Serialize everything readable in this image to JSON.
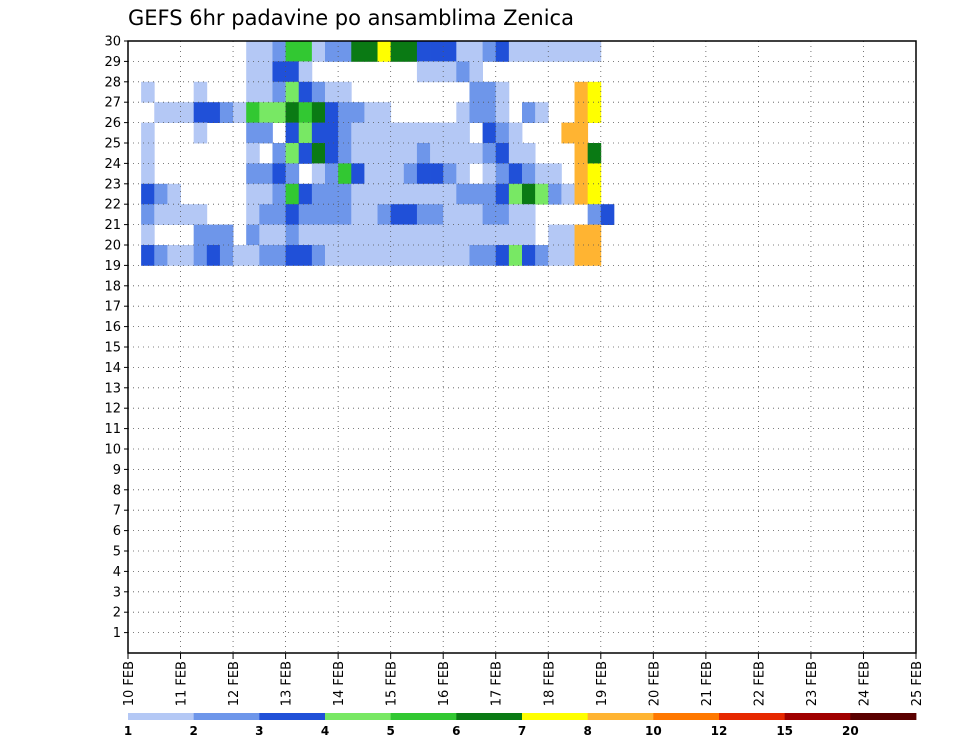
{
  "chart_data": {
    "type": "heatmap",
    "title": "GEFS 6hr padavine po ansamblima Zenica",
    "xlabel": "",
    "ylabel": "",
    "x_ticks": [
      "10 FEB",
      "11 FEB",
      "12 FEB",
      "13 FEB",
      "14 FEB",
      "15 FEB",
      "16 FEB",
      "17 FEB",
      "18 FEB",
      "19 FEB",
      "20 FEB",
      "21 FEB",
      "22 FEB",
      "23 FEB",
      "24 FEB",
      "25 FEB"
    ],
    "y_ticks": [
      "1",
      "2",
      "3",
      "4",
      "5",
      "6",
      "7",
      "8",
      "9",
      "10",
      "11",
      "12",
      "13",
      "14",
      "15",
      "16",
      "17",
      "18",
      "19",
      "20",
      "21",
      "22",
      "23",
      "24",
      "25",
      "26",
      "27",
      "28",
      "29",
      "30"
    ],
    "ensemble_members": 30,
    "time_steps_6h": 60,
    "grid": true,
    "legend_position": "bottom",
    "color_scale": {
      "levels": [
        "1",
        "2",
        "3",
        "4",
        "5",
        "6",
        "7",
        "8",
        "10",
        "12",
        "15",
        "20"
      ],
      "colors": [
        "#b4c8f5",
        "#6e96ea",
        "#2050d8",
        "#78e864",
        "#32c832",
        "#0a7a14",
        "#ffff00",
        "#ffb432",
        "#ff7800",
        "#e62800",
        "#a00000",
        "#5a0000"
      ]
    },
    "cells": [
      [
        30,
        9,
        1
      ],
      [
        30,
        10,
        1
      ],
      [
        30,
        11,
        2
      ],
      [
        30,
        12,
        5
      ],
      [
        30,
        13,
        5
      ],
      [
        30,
        14,
        1
      ],
      [
        30,
        15,
        2
      ],
      [
        30,
        16,
        2
      ],
      [
        30,
        17,
        6
      ],
      [
        30,
        18,
        6
      ],
      [
        30,
        19,
        7
      ],
      [
        30,
        20,
        6
      ],
      [
        30,
        21,
        6
      ],
      [
        30,
        22,
        3
      ],
      [
        30,
        23,
        3
      ],
      [
        30,
        24,
        3
      ],
      [
        30,
        25,
        1
      ],
      [
        30,
        26,
        1
      ],
      [
        30,
        27,
        2
      ],
      [
        30,
        28,
        3
      ],
      [
        30,
        29,
        1
      ],
      [
        30,
        30,
        1
      ],
      [
        30,
        31,
        1
      ],
      [
        30,
        32,
        1
      ],
      [
        30,
        33,
        1
      ],
      [
        30,
        34,
        1
      ],
      [
        30,
        35,
        1
      ],
      [
        29,
        9,
        1
      ],
      [
        29,
        10,
        1
      ],
      [
        29,
        11,
        3
      ],
      [
        29,
        12,
        3
      ],
      [
        29,
        13,
        1
      ],
      [
        29,
        22,
        1
      ],
      [
        29,
        23,
        1
      ],
      [
        29,
        24,
        1
      ],
      [
        29,
        25,
        2
      ],
      [
        29,
        26,
        1
      ],
      [
        28,
        1,
        1
      ],
      [
        28,
        5,
        1
      ],
      [
        28,
        9,
        1
      ],
      [
        28,
        10,
        1
      ],
      [
        28,
        11,
        2
      ],
      [
        28,
        12,
        4
      ],
      [
        28,
        13,
        3
      ],
      [
        28,
        14,
        2
      ],
      [
        28,
        15,
        1
      ],
      [
        28,
        16,
        1
      ],
      [
        28,
        26,
        2
      ],
      [
        28,
        27,
        2
      ],
      [
        28,
        28,
        1
      ],
      [
        28,
        34,
        8
      ],
      [
        28,
        35,
        7
      ],
      [
        27,
        2,
        1
      ],
      [
        27,
        3,
        1
      ],
      [
        27,
        4,
        1
      ],
      [
        27,
        5,
        3
      ],
      [
        27,
        6,
        3
      ],
      [
        27,
        7,
        2
      ],
      [
        27,
        8,
        1
      ],
      [
        27,
        9,
        5
      ],
      [
        27,
        10,
        4
      ],
      [
        27,
        11,
        4
      ],
      [
        27,
        12,
        6
      ],
      [
        27,
        13,
        5
      ],
      [
        27,
        14,
        6
      ],
      [
        27,
        15,
        3
      ],
      [
        27,
        16,
        2
      ],
      [
        27,
        17,
        2
      ],
      [
        27,
        18,
        1
      ],
      [
        27,
        19,
        1
      ],
      [
        27,
        25,
        1
      ],
      [
        27,
        26,
        2
      ],
      [
        27,
        27,
        2
      ],
      [
        27,
        28,
        1
      ],
      [
        27,
        30,
        2
      ],
      [
        27,
        31,
        1
      ],
      [
        27,
        34,
        8
      ],
      [
        27,
        35,
        7
      ],
      [
        26,
        1,
        1
      ],
      [
        26,
        5,
        1
      ],
      [
        26,
        9,
        2
      ],
      [
        26,
        10,
        2
      ],
      [
        26,
        12,
        3
      ],
      [
        26,
        13,
        4
      ],
      [
        26,
        14,
        3
      ],
      [
        26,
        15,
        3
      ],
      [
        26,
        16,
        2
      ],
      [
        26,
        17,
        1
      ],
      [
        26,
        18,
        1
      ],
      [
        26,
        19,
        1
      ],
      [
        26,
        20,
        1
      ],
      [
        26,
        21,
        1
      ],
      [
        26,
        22,
        1
      ],
      [
        26,
        23,
        1
      ],
      [
        26,
        24,
        1
      ],
      [
        26,
        25,
        1
      ],
      [
        26,
        27,
        3
      ],
      [
        26,
        28,
        2
      ],
      [
        26,
        29,
        1
      ],
      [
        26,
        33,
        8
      ],
      [
        26,
        34,
        8
      ],
      [
        25,
        1,
        1
      ],
      [
        25,
        9,
        1
      ],
      [
        25,
        11,
        2
      ],
      [
        25,
        12,
        4
      ],
      [
        25,
        13,
        3
      ],
      [
        25,
        14,
        6
      ],
      [
        25,
        15,
        3
      ],
      [
        25,
        16,
        2
      ],
      [
        25,
        17,
        1
      ],
      [
        25,
        18,
        1
      ],
      [
        25,
        19,
        1
      ],
      [
        25,
        20,
        1
      ],
      [
        25,
        21,
        1
      ],
      [
        25,
        22,
        2
      ],
      [
        25,
        23,
        1
      ],
      [
        25,
        24,
        1
      ],
      [
        25,
        25,
        1
      ],
      [
        25,
        26,
        1
      ],
      [
        25,
        27,
        2
      ],
      [
        25,
        28,
        3
      ],
      [
        25,
        29,
        1
      ],
      [
        25,
        30,
        1
      ],
      [
        25,
        34,
        8
      ],
      [
        25,
        35,
        6
      ],
      [
        24,
        1,
        1
      ],
      [
        24,
        9,
        2
      ],
      [
        24,
        10,
        2
      ],
      [
        24,
        11,
        3
      ],
      [
        24,
        12,
        2
      ],
      [
        24,
        14,
        1
      ],
      [
        24,
        15,
        2
      ],
      [
        24,
        16,
        5
      ],
      [
        24,
        17,
        3
      ],
      [
        24,
        18,
        1
      ],
      [
        24,
        19,
        1
      ],
      [
        24,
        20,
        1
      ],
      [
        24,
        21,
        2
      ],
      [
        24,
        22,
        3
      ],
      [
        24,
        23,
        3
      ],
      [
        24,
        24,
        2
      ],
      [
        24,
        25,
        1
      ],
      [
        24,
        27,
        1
      ],
      [
        24,
        28,
        2
      ],
      [
        24,
        29,
        3
      ],
      [
        24,
        30,
        2
      ],
      [
        24,
        31,
        1
      ],
      [
        24,
        32,
        1
      ],
      [
        24,
        34,
        8
      ],
      [
        24,
        35,
        7
      ],
      [
        23,
        1,
        3
      ],
      [
        23,
        2,
        2
      ],
      [
        23,
        3,
        1
      ],
      [
        23,
        9,
        1
      ],
      [
        23,
        10,
        1
      ],
      [
        23,
        11,
        2
      ],
      [
        23,
        12,
        5
      ],
      [
        23,
        13,
        3
      ],
      [
        23,
        14,
        2
      ],
      [
        23,
        15,
        2
      ],
      [
        23,
        16,
        2
      ],
      [
        23,
        17,
        1
      ],
      [
        23,
        18,
        1
      ],
      [
        23,
        19,
        1
      ],
      [
        23,
        20,
        1
      ],
      [
        23,
        21,
        1
      ],
      [
        23,
        22,
        1
      ],
      [
        23,
        23,
        1
      ],
      [
        23,
        24,
        1
      ],
      [
        23,
        25,
        2
      ],
      [
        23,
        26,
        2
      ],
      [
        23,
        27,
        2
      ],
      [
        23,
        28,
        3
      ],
      [
        23,
        29,
        4
      ],
      [
        23,
        30,
        6
      ],
      [
        23,
        31,
        4
      ],
      [
        23,
        32,
        2
      ],
      [
        23,
        33,
        1
      ],
      [
        23,
        34,
        8
      ],
      [
        23,
        35,
        7
      ],
      [
        22,
        1,
        2
      ],
      [
        22,
        2,
        1
      ],
      [
        22,
        3,
        1
      ],
      [
        22,
        4,
        1
      ],
      [
        22,
        5,
        1
      ],
      [
        22,
        9,
        1
      ],
      [
        22,
        10,
        2
      ],
      [
        22,
        11,
        2
      ],
      [
        22,
        12,
        3
      ],
      [
        22,
        13,
        2
      ],
      [
        22,
        14,
        2
      ],
      [
        22,
        15,
        2
      ],
      [
        22,
        16,
        2
      ],
      [
        22,
        17,
        1
      ],
      [
        22,
        18,
        1
      ],
      [
        22,
        19,
        2
      ],
      [
        22,
        20,
        3
      ],
      [
        22,
        21,
        3
      ],
      [
        22,
        22,
        2
      ],
      [
        22,
        23,
        2
      ],
      [
        22,
        24,
        1
      ],
      [
        22,
        25,
        1
      ],
      [
        22,
        26,
        1
      ],
      [
        22,
        27,
        2
      ],
      [
        22,
        28,
        2
      ],
      [
        22,
        29,
        1
      ],
      [
        22,
        30,
        1
      ],
      [
        22,
        35,
        2
      ],
      [
        22,
        36,
        3
      ],
      [
        21,
        1,
        1
      ],
      [
        21,
        5,
        2
      ],
      [
        21,
        6,
        2
      ],
      [
        21,
        7,
        2
      ],
      [
        21,
        9,
        2
      ],
      [
        21,
        10,
        1
      ],
      [
        21,
        11,
        1
      ],
      [
        21,
        12,
        2
      ],
      [
        21,
        13,
        1
      ],
      [
        21,
        14,
        1
      ],
      [
        21,
        15,
        1
      ],
      [
        21,
        16,
        1
      ],
      [
        21,
        17,
        1
      ],
      [
        21,
        18,
        1
      ],
      [
        21,
        19,
        1
      ],
      [
        21,
        20,
        1
      ],
      [
        21,
        21,
        1
      ],
      [
        21,
        22,
        1
      ],
      [
        21,
        23,
        1
      ],
      [
        21,
        24,
        1
      ],
      [
        21,
        25,
        1
      ],
      [
        21,
        26,
        1
      ],
      [
        21,
        27,
        1
      ],
      [
        21,
        28,
        1
      ],
      [
        21,
        29,
        1
      ],
      [
        21,
        30,
        1
      ],
      [
        21,
        32,
        1
      ],
      [
        21,
        33,
        1
      ],
      [
        21,
        34,
        8
      ],
      [
        21,
        35,
        8
      ],
      [
        20,
        1,
        3
      ],
      [
        20,
        2,
        2
      ],
      [
        20,
        3,
        1
      ],
      [
        20,
        4,
        1
      ],
      [
        20,
        5,
        2
      ],
      [
        20,
        6,
        3
      ],
      [
        20,
        7,
        2
      ],
      [
        20,
        8,
        1
      ],
      [
        20,
        9,
        1
      ],
      [
        20,
        10,
        2
      ],
      [
        20,
        11,
        2
      ],
      [
        20,
        12,
        3
      ],
      [
        20,
        13,
        3
      ],
      [
        20,
        14,
        2
      ],
      [
        20,
        15,
        1
      ],
      [
        20,
        16,
        1
      ],
      [
        20,
        17,
        1
      ],
      [
        20,
        18,
        1
      ],
      [
        20,
        19,
        1
      ],
      [
        20,
        20,
        1
      ],
      [
        20,
        21,
        1
      ],
      [
        20,
        22,
        1
      ],
      [
        20,
        23,
        1
      ],
      [
        20,
        24,
        1
      ],
      [
        20,
        25,
        1
      ],
      [
        20,
        26,
        2
      ],
      [
        20,
        27,
        2
      ],
      [
        20,
        28,
        3
      ],
      [
        20,
        29,
        4
      ],
      [
        20,
        30,
        3
      ],
      [
        20,
        31,
        2
      ],
      [
        20,
        32,
        1
      ],
      [
        20,
        33,
        1
      ],
      [
        20,
        34,
        8
      ],
      [
        20,
        35,
        8
      ]
    ]
  }
}
